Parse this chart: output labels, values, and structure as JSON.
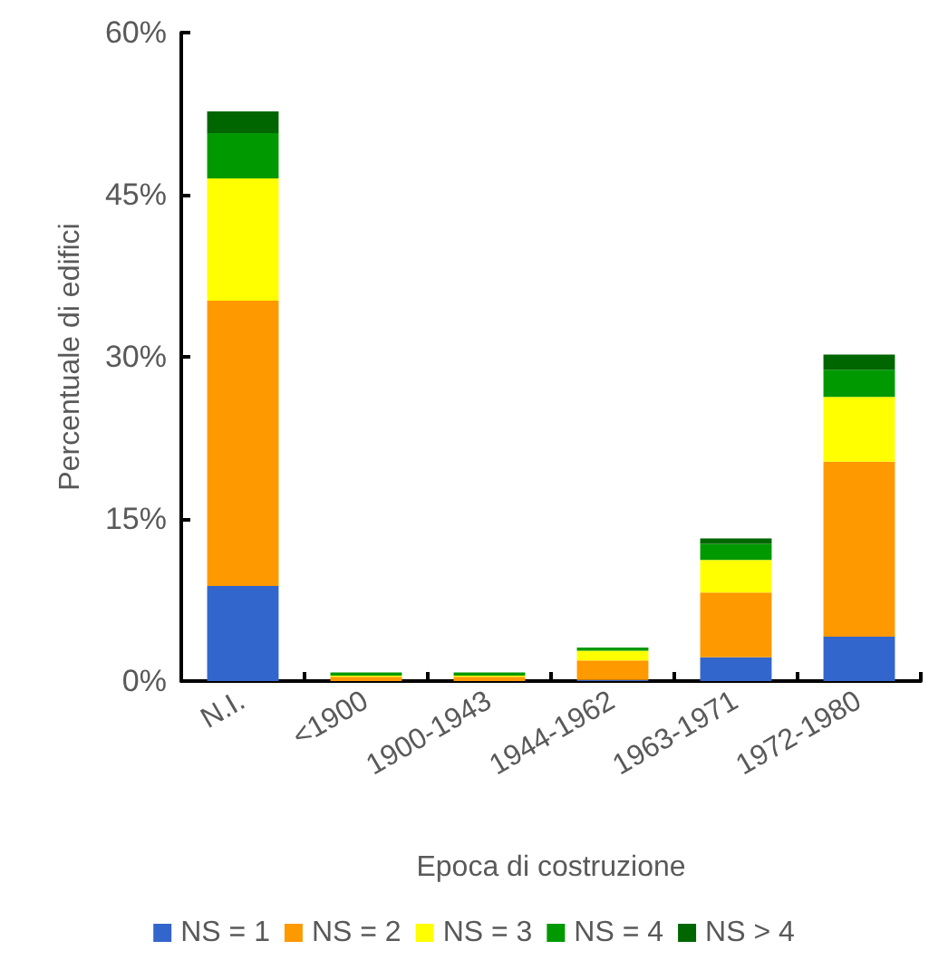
{
  "chart_data": {
    "type": "bar",
    "stacked": true,
    "xlabel": "Epoca di costruzione",
    "ylabel": "Percentuale di edifici",
    "categories": [
      "N.I.",
      "<1900",
      "1900-1943",
      "1944-1962",
      "1963-1971",
      "1972-1980"
    ],
    "series": [
      {
        "name": "NS = 1",
        "color": "#3366cc",
        "values": [
          8.8,
          0,
          0,
          0.1,
          2.2,
          4.1
        ]
      },
      {
        "name": "NS = 2",
        "color": "#ff9900",
        "values": [
          26.4,
          0.4,
          0.4,
          1.8,
          6.0,
          16.2
        ]
      },
      {
        "name": "NS = 3",
        "color": "#ffff00",
        "values": [
          11.3,
          0.1,
          0.1,
          0.9,
          3.0,
          6.0
        ]
      },
      {
        "name": "NS = 4",
        "color": "#009900",
        "values": [
          4.2,
          0.3,
          0.3,
          0.3,
          1.5,
          2.5
        ]
      },
      {
        "name": "NS > 4",
        "color": "#006600",
        "values": [
          2.0,
          0,
          0,
          0,
          0.5,
          1.4
        ]
      }
    ],
    "ylim": [
      0,
      60
    ],
    "yticks": [
      {
        "value": 0,
        "label": "0%"
      },
      {
        "value": 15,
        "label": "15%"
      },
      {
        "value": 30,
        "label": "30%"
      },
      {
        "value": 45,
        "label": "45%"
      },
      {
        "value": 60,
        "label": "60%"
      }
    ],
    "grid": false,
    "legend": "bottom"
  }
}
